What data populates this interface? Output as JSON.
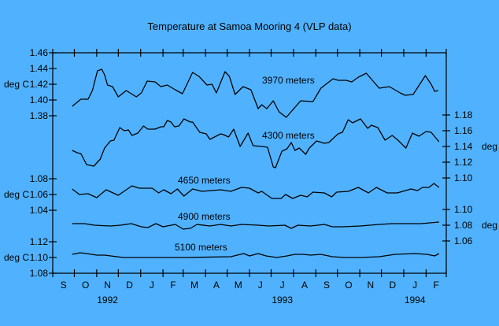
{
  "chart_data": {
    "type": "line",
    "title": "Temperature at Samoa Mooring 4 (VLP data)",
    "background_color": "#50b2ff",
    "line_color": "#000000",
    "grid": false,
    "x_axis": {
      "range": [
        "1992-09-01",
        "1994-03-01"
      ],
      "month_labels": [
        "S",
        "O",
        "N",
        "D",
        "J",
        "F",
        "M",
        "A",
        "M",
        "J",
        "J",
        "A",
        "S",
        "O",
        "N",
        "D",
        "J",
        "F"
      ],
      "year_labels": [
        {
          "label": "1992",
          "month_index": 2
        },
        {
          "label": "1993",
          "month_index": 10
        },
        {
          "label": "1994",
          "month_index": 16
        }
      ]
    },
    "y_axes": [
      {
        "id": "L1",
        "side": "left",
        "unit": "deg C",
        "unit_at": "1.42",
        "range": [
          1.38,
          1.46
        ],
        "ticks": [
          "1.46",
          "1.44",
          "1.42",
          "1.40",
          "1.38"
        ]
      },
      {
        "id": "L2",
        "side": "left",
        "unit": "deg C",
        "unit_at": "1.06",
        "range": [
          1.04,
          1.08
        ],
        "ticks": [
          "1.08",
          "1.06",
          "1.04"
        ]
      },
      {
        "id": "L3",
        "side": "left",
        "unit": "deg C",
        "unit_at": "1.10",
        "range": [
          1.08,
          1.12
        ],
        "ticks": [
          "1.12",
          "1.10",
          "1.08"
        ]
      },
      {
        "id": "R1",
        "side": "right",
        "unit": "deg C",
        "unit_at": "1.14",
        "range": [
          1.1,
          1.18
        ],
        "ticks": [
          "1.18",
          "1.16",
          "1.14",
          "1.12",
          "1.10"
        ]
      },
      {
        "id": "R2",
        "side": "right",
        "unit": "deg C",
        "unit_at": "1.08",
        "range": [
          1.06,
          1.1
        ],
        "ticks": [
          "1.10",
          "1.08",
          "1.06"
        ]
      }
    ],
    "series": [
      {
        "name": "3970 meters",
        "axis": "L1",
        "points": [
          [
            "1992-09-28",
            1.392
          ],
          [
            "1992-10-10",
            1.401
          ],
          [
            "1992-10-20",
            1.401
          ],
          [
            "1992-10-26",
            1.412
          ],
          [
            "1992-11-02",
            1.437
          ],
          [
            "1992-11-08",
            1.439
          ],
          [
            "1992-11-12",
            1.432
          ],
          [
            "1992-11-16",
            1.419
          ],
          [
            "1992-11-23",
            1.417
          ],
          [
            "1992-12-01",
            1.404
          ],
          [
            "1992-12-12",
            1.412
          ],
          [
            "1992-12-26",
            1.404
          ],
          [
            "1993-01-02",
            1.409
          ],
          [
            "1993-01-10",
            1.424
          ],
          [
            "1993-01-21",
            1.423
          ],
          [
            "1993-01-29",
            1.417
          ],
          [
            "1993-02-07",
            1.419
          ],
          [
            "1993-02-18",
            1.413
          ],
          [
            "1993-02-28",
            1.408
          ],
          [
            "1993-03-14",
            1.435
          ],
          [
            "1993-03-23",
            1.43
          ],
          [
            "1993-04-03",
            1.419
          ],
          [
            "1993-04-10",
            1.42
          ],
          [
            "1993-04-16",
            1.409
          ],
          [
            "1993-04-28",
            1.436
          ],
          [
            "1993-05-04",
            1.43
          ],
          [
            "1993-05-12",
            1.407
          ],
          [
            "1993-05-23",
            1.417
          ],
          [
            "1993-06-03",
            1.413
          ],
          [
            "1993-06-13",
            1.389
          ],
          [
            "1993-06-18",
            1.394
          ],
          [
            "1993-06-25",
            1.389
          ],
          [
            "1993-07-04",
            1.399
          ],
          [
            "1993-07-12",
            1.385
          ],
          [
            "1993-07-22",
            1.378
          ],
          [
            "1993-08-11",
            1.399
          ],
          [
            "1993-08-28",
            1.398
          ],
          [
            "1993-09-08",
            1.415
          ],
          [
            "1993-09-25",
            1.427
          ],
          [
            "1993-10-02",
            1.425
          ],
          [
            "1993-10-13",
            1.425
          ],
          [
            "1993-10-21",
            1.423
          ],
          [
            "1993-10-30",
            1.429
          ],
          [
            "1993-11-10",
            1.434
          ],
          [
            "1993-11-28",
            1.415
          ],
          [
            "1993-12-12",
            1.417
          ],
          [
            "1993-12-27",
            1.409
          ],
          [
            "1994-01-03",
            1.406
          ],
          [
            "1994-01-14",
            1.407
          ],
          [
            "1994-01-31",
            1.431
          ],
          [
            "1994-02-08",
            1.42
          ],
          [
            "1994-02-13",
            1.411
          ],
          [
            "1994-02-18",
            1.412
          ]
        ]
      },
      {
        "name": "4300 meters",
        "axis": "R1",
        "points": [
          [
            "1992-09-28",
            1.135
          ],
          [
            "1992-10-05",
            1.132
          ],
          [
            "1992-10-10",
            1.131
          ],
          [
            "1992-10-18",
            1.117
          ],
          [
            "1992-10-28",
            1.115
          ],
          [
            "1992-11-06",
            1.124
          ],
          [
            "1992-11-12",
            1.138
          ],
          [
            "1992-11-20",
            1.147
          ],
          [
            "1992-11-25",
            1.148
          ],
          [
            "1992-12-03",
            1.164
          ],
          [
            "1992-12-09",
            1.16
          ],
          [
            "1992-12-15",
            1.161
          ],
          [
            "1992-12-20",
            1.154
          ],
          [
            "1992-12-28",
            1.157
          ],
          [
            "1993-01-05",
            1.166
          ],
          [
            "1993-01-11",
            1.162
          ],
          [
            "1993-01-21",
            1.162
          ],
          [
            "1993-01-29",
            1.165
          ],
          [
            "1993-02-02",
            1.165
          ],
          [
            "1993-02-07",
            1.173
          ],
          [
            "1993-02-12",
            1.171
          ],
          [
            "1993-02-17",
            1.165
          ],
          [
            "1993-02-23",
            1.166
          ],
          [
            "1993-03-02",
            1.175
          ],
          [
            "1993-03-11",
            1.171
          ],
          [
            "1993-03-14",
            1.171
          ],
          [
            "1993-03-24",
            1.158
          ],
          [
            "1993-04-02",
            1.156
          ],
          [
            "1993-04-07",
            1.149
          ],
          [
            "1993-04-22",
            1.156
          ],
          [
            "1993-04-26",
            1.155
          ],
          [
            "1993-05-03",
            1.152
          ],
          [
            "1993-05-10",
            1.162
          ],
          [
            "1993-05-19",
            1.14
          ],
          [
            "1993-05-30",
            1.157
          ],
          [
            "1993-06-06",
            1.141
          ],
          [
            "1993-06-18",
            1.14
          ],
          [
            "1993-06-26",
            1.139
          ],
          [
            "1993-07-04",
            1.114
          ],
          [
            "1993-07-07",
            1.113
          ],
          [
            "1993-07-16",
            1.134
          ],
          [
            "1993-07-23",
            1.137
          ],
          [
            "1993-07-29",
            1.145
          ],
          [
            "1993-08-03",
            1.135
          ],
          [
            "1993-08-09",
            1.138
          ],
          [
            "1993-08-18",
            1.13
          ],
          [
            "1993-08-23",
            1.138
          ],
          [
            "1993-09-02",
            1.147
          ],
          [
            "1993-09-13",
            1.144
          ],
          [
            "1993-09-19",
            1.145
          ],
          [
            "1993-10-02",
            1.156
          ],
          [
            "1993-10-08",
            1.158
          ],
          [
            "1993-10-16",
            1.174
          ],
          [
            "1993-10-22",
            1.17
          ],
          [
            "1993-11-02",
            1.175
          ],
          [
            "1993-11-12",
            1.163
          ],
          [
            "1993-11-17",
            1.167
          ],
          [
            "1993-11-26",
            1.164
          ],
          [
            "1993-12-06",
            1.148
          ],
          [
            "1993-12-16",
            1.154
          ],
          [
            "1993-12-24",
            1.148
          ],
          [
            "1994-01-04",
            1.138
          ],
          [
            "1994-01-13",
            1.157
          ],
          [
            "1994-01-22",
            1.153
          ],
          [
            "1994-02-01",
            1.159
          ],
          [
            "1994-02-08",
            1.158
          ],
          [
            "1994-02-19",
            1.146
          ]
        ]
      },
      {
        "name": "4650 meters",
        "axis": "L2",
        "points": [
          [
            "1992-09-28",
            1.067
          ],
          [
            "1992-10-08",
            1.06
          ],
          [
            "1992-10-20",
            1.061
          ],
          [
            "1992-11-01",
            1.056
          ],
          [
            "1992-11-14",
            1.066
          ],
          [
            "1992-12-01",
            1.059
          ],
          [
            "1992-12-12",
            1.066
          ],
          [
            "1992-12-20",
            1.071
          ],
          [
            "1992-12-30",
            1.068
          ],
          [
            "1993-01-17",
            1.068
          ],
          [
            "1993-01-26",
            1.062
          ],
          [
            "1993-02-02",
            1.066
          ],
          [
            "1993-02-12",
            1.061
          ],
          [
            "1993-02-21",
            1.067
          ],
          [
            "1993-03-02",
            1.058
          ],
          [
            "1993-03-14",
            1.067
          ],
          [
            "1993-03-27",
            1.064
          ],
          [
            "1993-04-22",
            1.066
          ],
          [
            "1993-05-06",
            1.064
          ],
          [
            "1993-05-21",
            1.069
          ],
          [
            "1993-06-01",
            1.068
          ],
          [
            "1993-06-13",
            1.062
          ],
          [
            "1993-06-18",
            1.064
          ],
          [
            "1993-07-02",
            1.055
          ],
          [
            "1993-07-15",
            1.055
          ],
          [
            "1993-07-21",
            1.06
          ],
          [
            "1993-07-31",
            1.055
          ],
          [
            "1993-08-11",
            1.059
          ],
          [
            "1993-08-20",
            1.057
          ],
          [
            "1993-08-28",
            1.063
          ],
          [
            "1993-09-13",
            1.062
          ],
          [
            "1993-09-23",
            1.057
          ],
          [
            "1993-09-30",
            1.063
          ],
          [
            "1993-10-16",
            1.064
          ],
          [
            "1993-10-30",
            1.069
          ],
          [
            "1993-11-13",
            1.062
          ],
          [
            "1993-11-24",
            1.069
          ],
          [
            "1993-12-09",
            1.062
          ],
          [
            "1993-12-23",
            1.062
          ],
          [
            "1994-01-11",
            1.067
          ],
          [
            "1994-01-20",
            1.065
          ],
          [
            "1994-01-27",
            1.069
          ],
          [
            "1994-02-05",
            1.069
          ],
          [
            "1994-02-12",
            1.074
          ],
          [
            "1994-02-19",
            1.069
          ]
        ]
      },
      {
        "name": "4900 meters",
        "axis": "R2",
        "points": [
          [
            "1992-09-28",
            1.082
          ],
          [
            "1992-10-15",
            1.082
          ],
          [
            "1992-10-29",
            1.08
          ],
          [
            "1992-11-20",
            1.079
          ],
          [
            "1992-12-04",
            1.08
          ],
          [
            "1992-12-19",
            1.082
          ],
          [
            "1993-01-02",
            1.078
          ],
          [
            "1993-01-11",
            1.077
          ],
          [
            "1993-01-22",
            1.082
          ],
          [
            "1993-02-01",
            1.078
          ],
          [
            "1993-02-18",
            1.081
          ],
          [
            "1993-03-01",
            1.075
          ],
          [
            "1993-03-11",
            1.076
          ],
          [
            "1993-03-20",
            1.081
          ],
          [
            "1993-04-07",
            1.079
          ],
          [
            "1993-04-22",
            1.081
          ],
          [
            "1993-05-06",
            1.079
          ],
          [
            "1993-05-21",
            1.081
          ],
          [
            "1993-06-13",
            1.08
          ],
          [
            "1993-06-28",
            1.079
          ],
          [
            "1993-07-20",
            1.08
          ],
          [
            "1993-07-29",
            1.076
          ],
          [
            "1993-08-07",
            1.08
          ],
          [
            "1993-08-25",
            1.079
          ],
          [
            "1993-09-13",
            1.081
          ],
          [
            "1993-09-24",
            1.078
          ],
          [
            "1993-10-08",
            1.078
          ],
          [
            "1993-11-02",
            1.079
          ],
          [
            "1993-11-28",
            1.081
          ],
          [
            "1993-12-16",
            1.082
          ],
          [
            "1994-01-25",
            1.082
          ],
          [
            "1994-02-19",
            1.084
          ]
        ]
      },
      {
        "name": "5100 meters",
        "axis": "L3",
        "points": [
          [
            "1992-09-28",
            1.104
          ],
          [
            "1992-10-09",
            1.106
          ],
          [
            "1992-10-18",
            1.105
          ],
          [
            "1992-11-01",
            1.103
          ],
          [
            "1992-11-12",
            1.103
          ],
          [
            "1992-12-08",
            1.1
          ],
          [
            "1993-01-21",
            1.1
          ],
          [
            "1993-03-06",
            1.1
          ],
          [
            "1993-05-06",
            1.101
          ],
          [
            "1993-05-24",
            1.105
          ],
          [
            "1993-06-01",
            1.102
          ],
          [
            "1993-06-13",
            1.105
          ],
          [
            "1993-06-24",
            1.102
          ],
          [
            "1993-07-09",
            1.1
          ],
          [
            "1993-07-23",
            1.102
          ],
          [
            "1993-08-03",
            1.104
          ],
          [
            "1993-08-14",
            1.104
          ],
          [
            "1993-08-25",
            1.103
          ],
          [
            "1993-09-08",
            1.104
          ],
          [
            "1993-09-24",
            1.101
          ],
          [
            "1993-10-11",
            1.1
          ],
          [
            "1993-11-02",
            1.1
          ],
          [
            "1993-11-28",
            1.101
          ],
          [
            "1993-12-20",
            1.104
          ],
          [
            "1994-01-17",
            1.105
          ],
          [
            "1994-02-02",
            1.104
          ],
          [
            "1994-02-13",
            1.102
          ],
          [
            "1994-02-19",
            1.105
          ]
        ]
      }
    ]
  }
}
